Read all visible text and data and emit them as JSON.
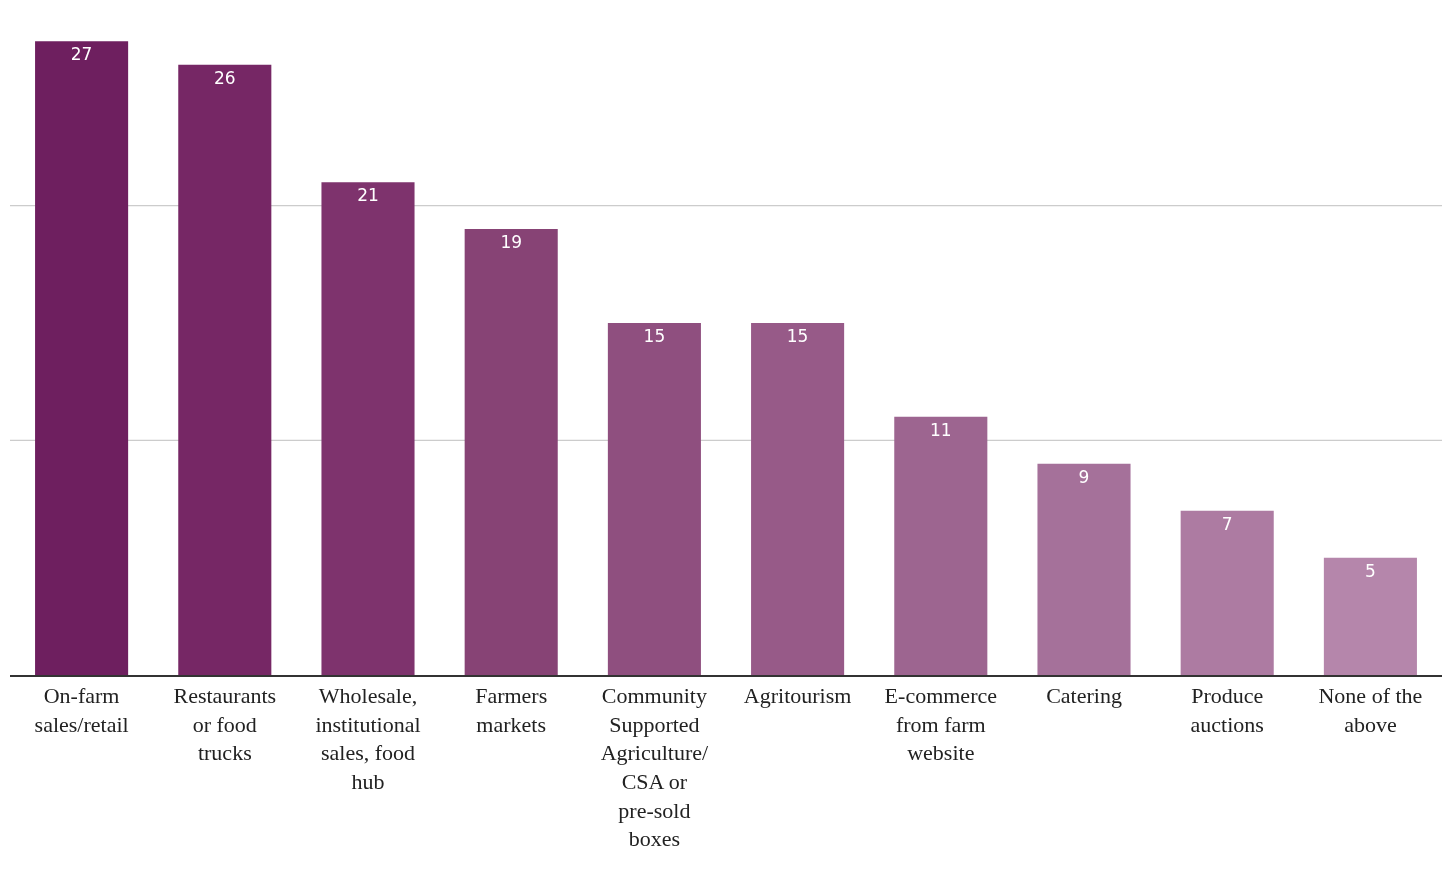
{
  "chart_data": {
    "type": "bar",
    "categories": [
      "On-farm sales/retail",
      "Restaurants or food trucks",
      "Wholesale, institutional sales, food hub",
      "Farmers markets",
      "Community Supported Agriculture/ CSA or pre-sold boxes",
      "Agritourism",
      "E-commerce from farm website",
      "Catering",
      "Produce auctions",
      "None of the above"
    ],
    "values": [
      27,
      26,
      21,
      19,
      15,
      15,
      11,
      9,
      7,
      5
    ],
    "colors": [
      "#6e1f5f",
      "#762765",
      "#7e336d",
      "#874375",
      "#8f4f7f",
      "#975a88",
      "#9d6590",
      "#a5719a",
      "#ad7ba2",
      "#b586ab"
    ],
    "ref_lines": [
      {
        "axis": "y",
        "value": 10,
        "color": "#cccccc"
      },
      {
        "axis": "y",
        "value": 20,
        "color": "#cccccc"
      }
    ],
    "data_labels": true,
    "tick_labels": "x",
    "legend": false
  }
}
